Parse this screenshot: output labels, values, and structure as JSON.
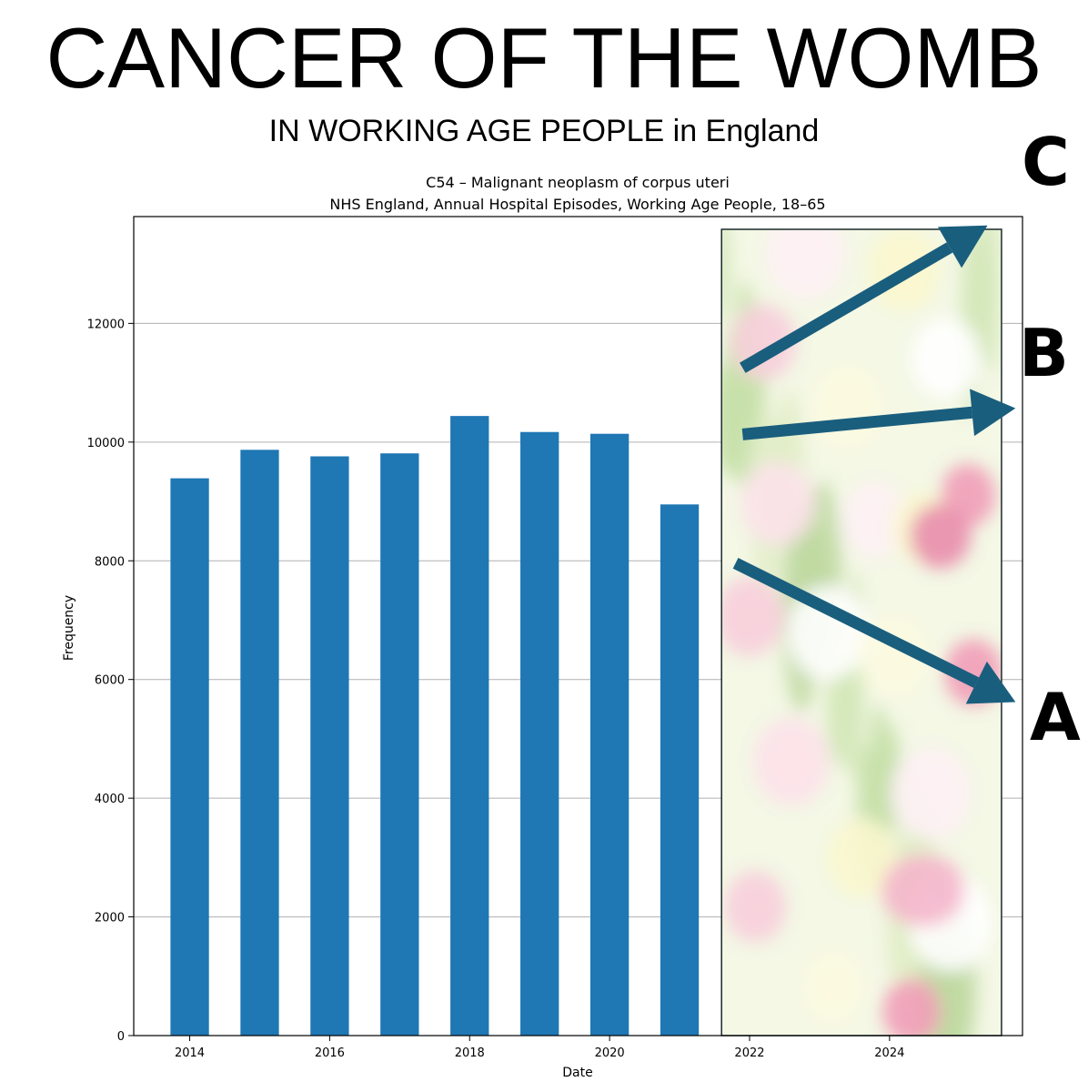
{
  "header": {
    "title": "CANCER OF THE WOMB",
    "subtitle": "IN WORKING AGE PEOPLE in England"
  },
  "colors": {
    "bar": "#1f77b4",
    "arrow": "#1a5e7e",
    "grid": "#b0b0b0"
  },
  "chart_data": {
    "type": "bar",
    "title_line1": "C54 – Malignant neoplasm of corpus uteri",
    "title_line2": "NHS England, Annual Hospital Episodes, Working Age People, 18–65",
    "xlabel": "Date",
    "ylabel": "Frequency",
    "x": [
      2014,
      2015,
      2016,
      2017,
      2018,
      2019,
      2020,
      2021
    ],
    "values": [
      9390,
      9870,
      9760,
      9810,
      10440,
      10170,
      10140,
      8950
    ],
    "xticks": [
      2014,
      2016,
      2018,
      2020,
      2022,
      2024
    ],
    "yticks": [
      0,
      2000,
      4000,
      6000,
      8000,
      10000,
      12000
    ],
    "xlim": [
      2013.2,
      2025.9
    ],
    "ylim": [
      0,
      13800
    ],
    "grid": "horizontal",
    "projection_panel": {
      "x_range": [
        2021.6,
        2025.6
      ],
      "image": "tulip-field-photo"
    },
    "arrows": [
      {
        "label": "C",
        "from": [
          2021.9,
          11250
        ],
        "to": [
          2025.4,
          13650
        ]
      },
      {
        "label": "B",
        "from": [
          2021.9,
          10130
        ],
        "to": [
          2025.8,
          10570
        ]
      },
      {
        "label": "A",
        "from": [
          2021.8,
          7960
        ],
        "to": [
          2025.8,
          5620
        ]
      }
    ]
  }
}
